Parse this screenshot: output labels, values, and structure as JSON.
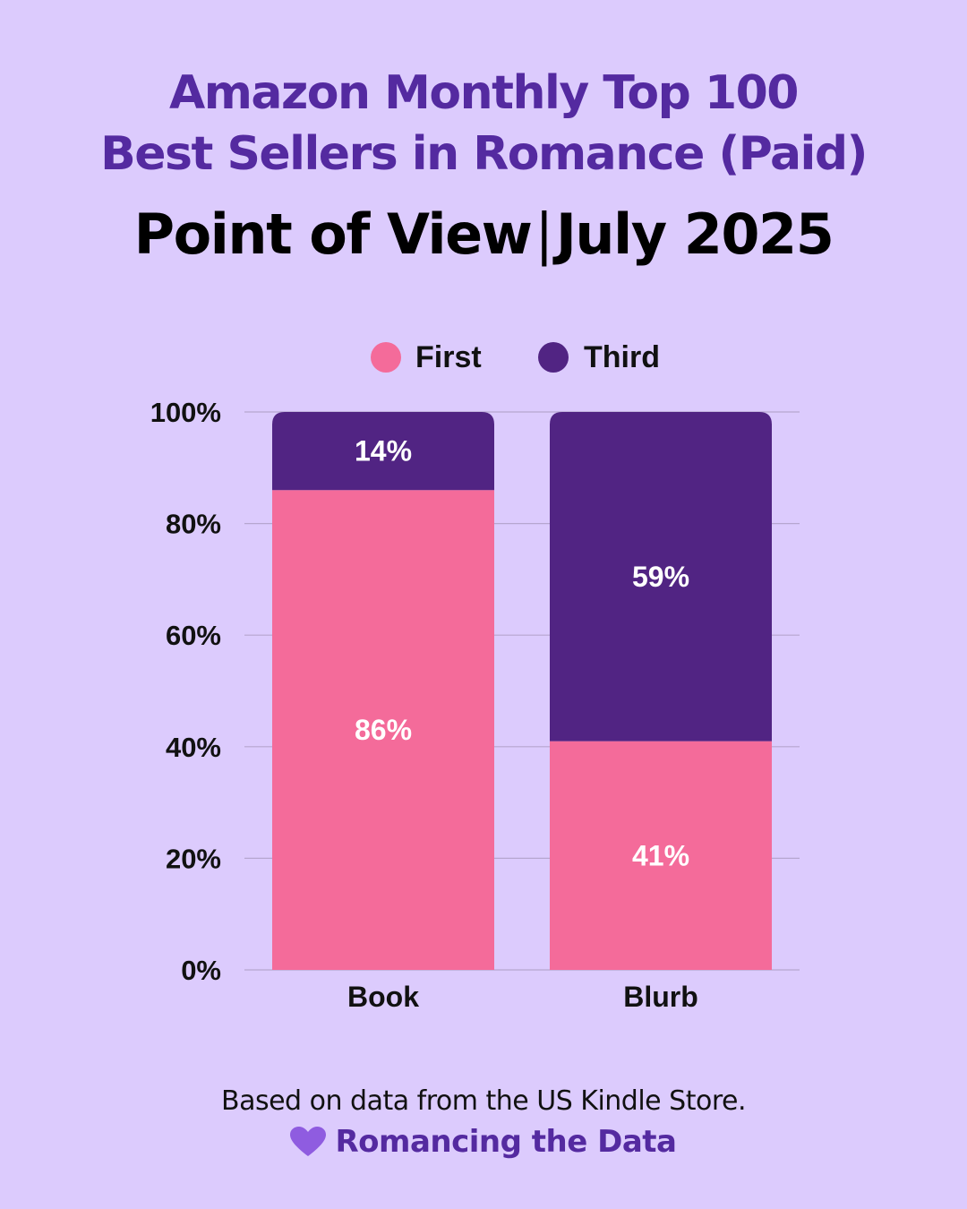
{
  "header": {
    "title_line1": "Amazon Monthly Top 100",
    "title_line2": "Best Sellers in Romance (Paid)",
    "subtitle_left": "Point of View",
    "subtitle_sep": "|",
    "subtitle_right": "July 2025"
  },
  "colors": {
    "background": "#dccbfd",
    "first": "#f46b9a",
    "third": "#512483",
    "title": "#542aa0",
    "heart": "#8f5ce0"
  },
  "chart_data": {
    "type": "bar",
    "stacked": true,
    "categories": [
      "Book",
      "Blurb"
    ],
    "series": [
      {
        "name": "First",
        "values": [
          86,
          41
        ],
        "labels": [
          "86%",
          "41%"
        ]
      },
      {
        "name": "Third",
        "values": [
          14,
          59
        ],
        "labels": [
          "14%",
          "59%"
        ]
      }
    ],
    "ylim": [
      0,
      100
    ],
    "yticks": [
      "0%",
      "20%",
      "40%",
      "60%",
      "80%",
      "100%"
    ],
    "grid": true,
    "legend_position": "top"
  },
  "footer": {
    "note": "Based on data from the US Kindle Store.",
    "brand": "Romancing the Data",
    "brand_icon": "heart-icon"
  }
}
